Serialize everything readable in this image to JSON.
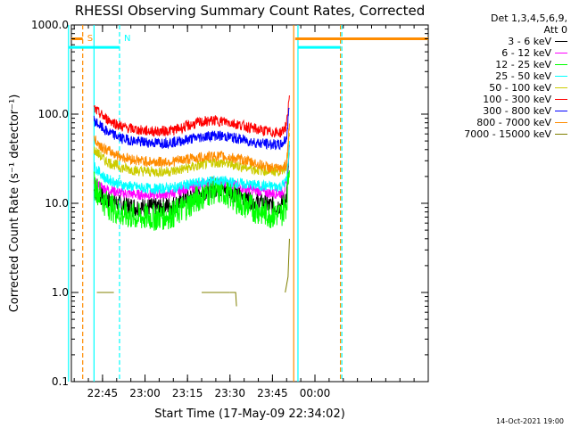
{
  "chart_data": {
    "type": "line",
    "title": "RHESSI Observing Summary Count Rates, Corrected",
    "xlabel": "Start Time (17-May-09 22:34:02)",
    "ylabel": "Corrected Count Rate (s⁻¹ detector⁻¹)",
    "ylog": true,
    "ylim": [
      0.1,
      1000
    ],
    "xlim_minutes": [
      0,
      126
    ],
    "y_ticks": [
      {
        "value": 0.1,
        "label": "0.1"
      },
      {
        "value": 1,
        "label": "1.0"
      },
      {
        "value": 10,
        "label": "10.0"
      },
      {
        "value": 100,
        "label": "100.0"
      },
      {
        "value": 1000,
        "label": "1000.0"
      }
    ],
    "x_ticks": [
      {
        "minute": 11,
        "label": "22:45"
      },
      {
        "minute": 26,
        "label": "23:00"
      },
      {
        "minute": 41,
        "label": "23:15"
      },
      {
        "minute": 56,
        "label": "23:30"
      },
      {
        "minute": 71,
        "label": "23:45"
      },
      {
        "minute": 86,
        "label": "00:00"
      }
    ],
    "series": [
      {
        "name": "3 - 6 keV",
        "color": "#000000",
        "x": [
          8,
          12,
          18,
          24,
          30,
          36,
          40,
          45,
          50,
          55,
          60,
          65,
          70,
          74,
          76,
          77
        ],
        "y": [
          14,
          11,
          9.5,
          9,
          9,
          9.5,
          11,
          13,
          15,
          14.5,
          12,
          10.5,
          9.5,
          9.5,
          12,
          40
        ]
      },
      {
        "name": "6 - 12 keV",
        "color": "#ff00ff",
        "x": [
          8,
          12,
          18,
          24,
          30,
          36,
          40,
          45,
          50,
          55,
          60,
          65,
          70,
          74,
          76,
          77
        ],
        "y": [
          17,
          14.5,
          13,
          12.5,
          12.5,
          13,
          14.5,
          16,
          17.5,
          17,
          15,
          14,
          13,
          13,
          16,
          50
        ]
      },
      {
        "name": "12 - 25 keV",
        "color": "#00ff00",
        "x": [
          8,
          12,
          18,
          24,
          30,
          36,
          40,
          45,
          50,
          55,
          60,
          65,
          70,
          74,
          76,
          77
        ],
        "y": [
          16,
          10,
          7.5,
          7,
          7,
          7.5,
          9,
          11.5,
          14,
          13,
          10,
          8.5,
          7.5,
          7.5,
          10,
          30
        ]
      },
      {
        "name": "25 - 50 keV",
        "color": "#00ffff",
        "x": [
          8,
          12,
          18,
          24,
          30,
          36,
          40,
          45,
          50,
          55,
          60,
          65,
          70,
          74,
          76,
          77
        ],
        "y": [
          26,
          19,
          16,
          15,
          14.5,
          15,
          16,
          17,
          18,
          17.5,
          16.5,
          16,
          15.5,
          15.5,
          18,
          45
        ]
      },
      {
        "name": "50 - 100 keV",
        "color": "#cccc00",
        "x": [
          8,
          12,
          18,
          24,
          30,
          36,
          40,
          45,
          50,
          55,
          60,
          65,
          70,
          74,
          76,
          77
        ],
        "y": [
          40,
          30,
          25,
          23,
          22.5,
          23,
          24.5,
          26.5,
          29,
          28,
          26,
          24,
          23,
          23,
          27,
          60
        ]
      },
      {
        "name": "100 - 300 keV",
        "color": "#ff0000",
        "x": [
          8,
          12,
          18,
          24,
          30,
          36,
          40,
          45,
          50,
          55,
          60,
          65,
          70,
          74,
          76,
          77
        ],
        "y": [
          115,
          90,
          72,
          66,
          64,
          66,
          72,
          80,
          85,
          82,
          75,
          68,
          63,
          62,
          75,
          170
        ]
      },
      {
        "name": "300 - 800 keV",
        "color": "#0000ff",
        "x": [
          8,
          12,
          18,
          24,
          30,
          36,
          40,
          45,
          50,
          55,
          60,
          65,
          70,
          74,
          76,
          77
        ],
        "y": [
          85,
          65,
          53,
          49,
          47.5,
          48.5,
          51,
          55,
          58,
          56,
          52,
          48,
          46,
          45,
          54,
          130
        ]
      },
      {
        "name": "800 - 7000 keV",
        "color": "#ff8c00",
        "x": [
          8,
          12,
          18,
          24,
          30,
          36,
          40,
          45,
          50,
          55,
          60,
          65,
          70,
          74,
          76,
          77
        ],
        "y": [
          52,
          40,
          33,
          30,
          29,
          29.5,
          31,
          32.5,
          34,
          33,
          31,
          28,
          25,
          24,
          28,
          80
        ]
      },
      {
        "name": "7000 - 15000 keV",
        "color": "#808000",
        "segments": [
          {
            "x": [
              9,
              15
            ],
            "y": [
              1.0,
              1.0
            ]
          },
          {
            "x": [
              46,
              56
            ],
            "y": [
              1.0,
              1.0
            ]
          },
          {
            "x": [
              56,
              58,
              58.3
            ],
            "y": [
              1.0,
              1.0,
              0.7
            ]
          },
          {
            "x": [
              75.5,
              76.5,
              77
            ],
            "y": [
              1.0,
              1.5,
              4.0
            ]
          }
        ]
      }
    ],
    "attenuator_state": [
      {
        "from_minute": 0,
        "to_minute": 4,
        "value": 700
      },
      {
        "from_minute": 79,
        "to_minute": 126,
        "value": 700
      }
    ],
    "vertical_markers": [
      {
        "minute": -1,
        "color": "#00ffff",
        "style": "solid"
      },
      {
        "minute": 4,
        "color": "#ff8c00",
        "style": "dashed",
        "label": "S"
      },
      {
        "minute": 8,
        "color": "#00ffff",
        "style": "solid"
      },
      {
        "minute": 17,
        "color": "#00ffff",
        "style": "dashed",
        "label": "N"
      },
      {
        "minute": 78.5,
        "color": "#ff8c00",
        "style": "solid"
      },
      {
        "minute": 80,
        "color": "#00ffff",
        "style": "solid"
      },
      {
        "minute": 95,
        "color": "#ff8c00",
        "style": "dashed"
      },
      {
        "minute": 95.5,
        "color": "#00ffff",
        "style": "dashed"
      }
    ],
    "night_bars": [
      {
        "from_minute": -1,
        "to_minute": 17,
        "value": 560
      },
      {
        "from_minute": 80,
        "to_minute": 95,
        "value": 560
      }
    ],
    "legend_placement": "right",
    "grid": false
  },
  "legend": {
    "header_line1": "Det 1,3,4,5,6,9,",
    "header_line2": "Att 0"
  },
  "footer": {
    "date": "14-Oct-2021 19:00"
  }
}
